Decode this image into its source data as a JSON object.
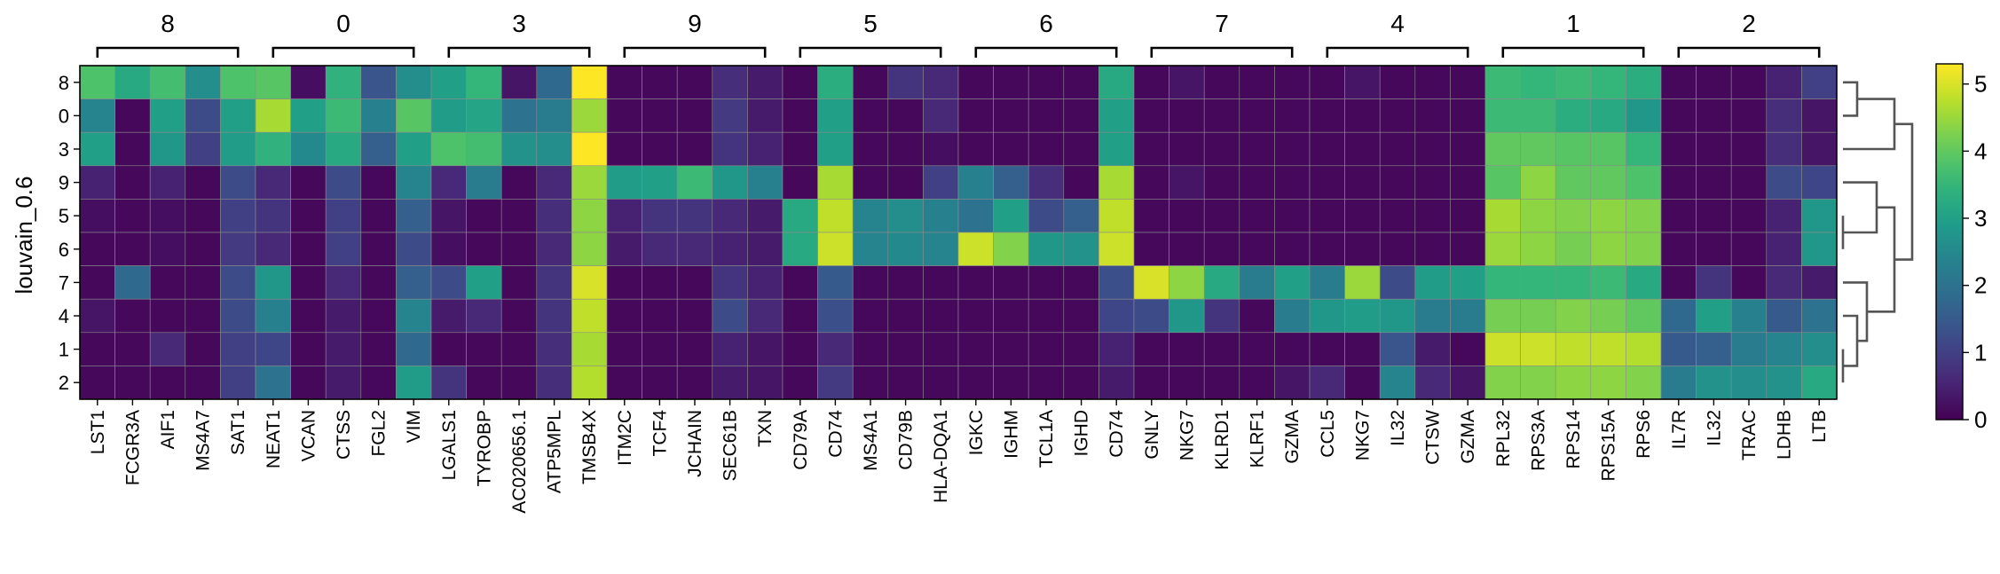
{
  "chart_data": {
    "type": "heatmap",
    "ylabel": "louvain_0.6",
    "rows": [
      "8",
      "0",
      "3",
      "9",
      "5",
      "6",
      "7",
      "4",
      "1",
      "2"
    ],
    "groups": [
      {
        "label": "8",
        "genes": [
          "LST1",
          "FCGR3A",
          "AIF1",
          "MS4A7",
          "SAT1"
        ]
      },
      {
        "label": "0",
        "genes": [
          "NEAT1",
          "VCAN",
          "CTSS",
          "FGL2",
          "VIM"
        ]
      },
      {
        "label": "3",
        "genes": [
          "LGALS1",
          "TYROBP",
          "AC020656.1",
          "ATP5MPL",
          "TMSB4X"
        ]
      },
      {
        "label": "9",
        "genes": [
          "ITM2C",
          "TCF4",
          "JCHAIN",
          "SEC61B",
          "TXN"
        ]
      },
      {
        "label": "5",
        "genes": [
          "CD79A",
          "CD74",
          "MS4A1",
          "CD79B",
          "HLA-DQA1"
        ]
      },
      {
        "label": "6",
        "genes": [
          "IGKC",
          "IGHM",
          "TCL1A",
          "IGHD",
          "CD74"
        ]
      },
      {
        "label": "7",
        "genes": [
          "GNLY",
          "NKG7",
          "KLRD1",
          "KLRF1",
          "GZMA"
        ]
      },
      {
        "label": "4",
        "genes": [
          "CCL5",
          "NKG7",
          "IL32",
          "CTSW",
          "GZMA"
        ]
      },
      {
        "label": "1",
        "genes": [
          "RPL32",
          "RPS3A",
          "RPS14",
          "RPS15A",
          "RPS6"
        ]
      },
      {
        "label": "2",
        "genes": [
          "IL7R",
          "IL32",
          "TRAC",
          "LDHB",
          "LTB"
        ]
      }
    ],
    "values": [
      [
        3.8,
        3.2,
        3.7,
        2.6,
        3.8,
        3.9,
        0.2,
        3.4,
        1.4,
        2.6,
        3.0,
        3.5,
        0.3,
        1.8,
        5.3,
        0.1,
        0.1,
        0.1,
        0.7,
        0.4,
        0.1,
        3.3,
        0.1,
        0.8,
        0.6,
        0.1,
        0.1,
        0.1,
        0.1,
        3.2,
        0.1,
        0.3,
        0.1,
        0.1,
        0.1,
        0.1,
        0.3,
        0.1,
        0.1,
        0.1,
        3.6,
        3.5,
        3.6,
        3.5,
        3.3,
        0.1,
        0.1,
        0.1,
        0.5,
        1.0
      ],
      [
        2.4,
        0.1,
        3.0,
        1.2,
        3.0,
        4.6,
        3.0,
        3.6,
        2.3,
        3.9,
        2.9,
        3.1,
        2.0,
        2.2,
        4.5,
        0.1,
        0.1,
        0.1,
        0.9,
        0.4,
        0.1,
        3.0,
        0.1,
        0.1,
        0.6,
        0.1,
        0.1,
        0.1,
        0.1,
        3.0,
        0.1,
        0.1,
        0.1,
        0.1,
        0.1,
        0.1,
        0.1,
        0.1,
        0.1,
        0.1,
        3.6,
        3.6,
        3.3,
        3.2,
        2.8,
        0.1,
        0.1,
        0.1,
        0.7,
        0.3
      ],
      [
        3.0,
        0.1,
        2.8,
        1.0,
        2.9,
        3.4,
        2.5,
        3.2,
        1.6,
        3.0,
        3.8,
        3.7,
        2.7,
        2.6,
        5.3,
        0.1,
        0.1,
        0.1,
        0.8,
        0.5,
        0.1,
        3.0,
        0.1,
        0.1,
        0.2,
        0.1,
        0.1,
        0.1,
        0.1,
        3.0,
        0.1,
        0.1,
        0.1,
        0.1,
        0.1,
        0.1,
        0.1,
        0.1,
        0.1,
        0.1,
        4.0,
        4.0,
        3.9,
        3.9,
        3.5,
        0.1,
        0.1,
        0.1,
        0.7,
        0.3
      ],
      [
        0.5,
        0.1,
        0.5,
        0.1,
        1.2,
        0.6,
        0.1,
        1.2,
        0.1,
        2.4,
        0.6,
        2.2,
        0.1,
        0.6,
        4.5,
        2.9,
        3.0,
        3.6,
        2.8,
        2.3,
        0.1,
        4.6,
        0.1,
        0.1,
        1.0,
        2.3,
        1.6,
        0.7,
        0.1,
        4.6,
        0.1,
        0.3,
        0.1,
        0.1,
        0.1,
        0.1,
        0.1,
        0.1,
        0.1,
        0.1,
        3.9,
        4.4,
        4.0,
        4.0,
        3.8,
        0.1,
        0.1,
        0.1,
        1.2,
        1.1
      ],
      [
        0.2,
        0.1,
        0.2,
        0.1,
        1.0,
        0.8,
        0.1,
        1.0,
        0.1,
        1.6,
        0.3,
        0.1,
        0.1,
        0.7,
        4.4,
        0.5,
        0.8,
        0.8,
        0.6,
        0.4,
        3.2,
        4.8,
        2.4,
        2.6,
        2.3,
        2.0,
        3.0,
        1.2,
        1.6,
        4.8,
        0.1,
        0.1,
        0.1,
        0.1,
        0.1,
        0.1,
        0.1,
        0.1,
        0.1,
        0.1,
        4.6,
        4.4,
        4.3,
        4.4,
        4.3,
        0.1,
        0.1,
        0.1,
        0.5,
        2.8
      ],
      [
        0.1,
        0.1,
        0.2,
        0.1,
        0.9,
        0.6,
        0.1,
        1.0,
        0.1,
        1.2,
        0.2,
        0.1,
        0.1,
        0.6,
        4.4,
        0.4,
        0.6,
        0.6,
        0.5,
        0.4,
        3.2,
        4.9,
        2.4,
        2.5,
        2.4,
        4.9,
        4.3,
        2.8,
        2.7,
        4.9,
        0.1,
        0.1,
        0.1,
        0.1,
        0.1,
        0.1,
        0.1,
        0.1,
        0.1,
        0.1,
        4.5,
        4.4,
        4.2,
        4.4,
        4.3,
        0.1,
        0.1,
        0.1,
        0.5,
        2.8
      ],
      [
        0.1,
        1.8,
        0.1,
        0.1,
        1.2,
        2.8,
        0.1,
        0.6,
        0.1,
        1.6,
        1.2,
        3.0,
        0.1,
        0.8,
        5.0,
        0.1,
        0.1,
        0.1,
        0.8,
        0.5,
        0.1,
        1.5,
        0.1,
        0.1,
        0.1,
        0.1,
        0.1,
        0.1,
        0.1,
        1.3,
        5.0,
        4.4,
        3.2,
        2.2,
        3.0,
        2.2,
        4.5,
        1.2,
        2.9,
        3.0,
        3.5,
        3.5,
        3.5,
        3.6,
        3.2,
        0.1,
        0.8,
        0.1,
        0.6,
        0.4
      ],
      [
        0.3,
        0.1,
        0.1,
        0.1,
        1.2,
        2.3,
        0.1,
        0.4,
        0.1,
        2.4,
        0.4,
        0.6,
        0.1,
        0.8,
        4.8,
        0.1,
        0.1,
        0.1,
        1.2,
        0.6,
        0.1,
        1.3,
        0.1,
        0.1,
        0.1,
        0.1,
        0.1,
        0.1,
        0.1,
        1.1,
        1.2,
        2.8,
        0.8,
        0.1,
        2.2,
        2.8,
        2.9,
        2.8,
        2.2,
        2.2,
        4.2,
        4.2,
        4.3,
        4.2,
        4.0,
        1.8,
        3.0,
        2.3,
        1.5,
        2.0
      ],
      [
        0.1,
        0.1,
        0.6,
        0.1,
        1.0,
        1.1,
        0.1,
        0.4,
        0.1,
        1.8,
        0.1,
        0.1,
        0.1,
        0.7,
        4.6,
        0.1,
        0.1,
        0.1,
        0.5,
        0.3,
        0.1,
        0.6,
        0.1,
        0.1,
        0.1,
        0.1,
        0.1,
        0.1,
        0.1,
        0.5,
        0.1,
        0.1,
        0.1,
        0.1,
        0.1,
        0.1,
        0.1,
        1.4,
        0.4,
        0.1,
        4.9,
        4.9,
        4.8,
        4.8,
        4.7,
        1.5,
        1.6,
        2.2,
        2.4,
        2.6
      ],
      [
        0.1,
        0.1,
        0.1,
        0.1,
        1.0,
        2.0,
        0.1,
        0.4,
        0.1,
        2.9,
        0.8,
        0.1,
        0.1,
        0.7,
        4.7,
        0.1,
        0.1,
        0.1,
        0.4,
        0.3,
        0.1,
        0.9,
        0.1,
        0.1,
        0.1,
        0.1,
        0.1,
        0.1,
        0.1,
        0.4,
        0.1,
        0.1,
        0.1,
        0.1,
        0.3,
        0.6,
        0.1,
        2.4,
        0.6,
        0.3,
        4.3,
        4.3,
        4.4,
        4.4,
        4.3,
        2.2,
        2.7,
        2.6,
        2.7,
        3.2
      ]
    ],
    "colorbar": {
      "colormap": "viridis",
      "range": [
        0,
        5.3
      ],
      "ticks": [
        "0",
        "1",
        "2",
        "3",
        "4",
        "5"
      ]
    },
    "dendrogram": true,
    "grid": true
  }
}
